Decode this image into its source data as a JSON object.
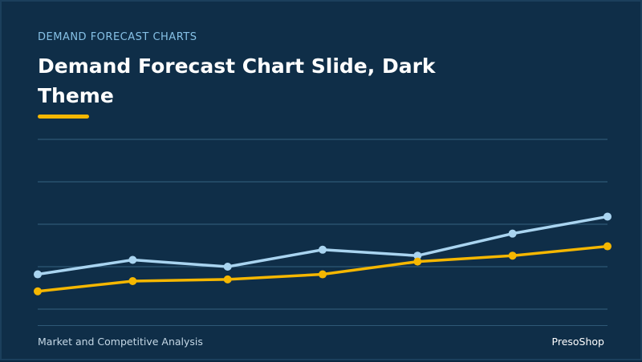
{
  "slide": {
    "eyebrow": "DEMAND FORECAST CHARTS",
    "title": "Demand Forecast Chart Slide, Dark Theme",
    "footer_left": "Market and Competitive Analysis",
    "footer_right": "PresoShop"
  },
  "colors": {
    "background": "#0f2e48",
    "accent": "#f5b700",
    "series_light": "#a9d4f0",
    "gridline": "#2e5876"
  },
  "chart_data": {
    "type": "line",
    "x": [
      1,
      2,
      3,
      4,
      5,
      6,
      7
    ],
    "ylim": [
      0,
      100
    ],
    "grid": true,
    "legend": "none",
    "series": [
      {
        "color": "#a9d4f0",
        "values": [
          41,
          58,
          50,
          70,
          63,
          89,
          109
        ]
      },
      {
        "color": "#f5b700",
        "values": [
          21,
          33,
          35,
          41,
          56,
          63,
          74
        ]
      }
    ]
  }
}
